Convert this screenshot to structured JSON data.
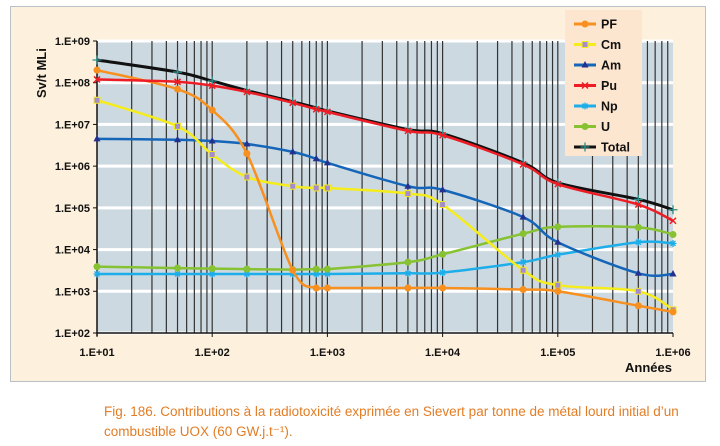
{
  "chart_data": {
    "type": "line",
    "xscale": "log",
    "yscale": "log",
    "xlim": [
      10,
      1000000
    ],
    "ylim": [
      100,
      1000000000
    ],
    "xlabel": "Années",
    "ylabel": "Sv/t MLi",
    "xticks": [
      "1.E+01",
      "1.E+02",
      "1.E+03",
      "1.E+04",
      "1.E+05",
      "1.E+06"
    ],
    "yticks": [
      "1.E+02",
      "1.E+03",
      "1.E+04",
      "1.E+05",
      "1.E+06",
      "1.E+07",
      "1.E+08",
      "1.E+09"
    ],
    "grid": true,
    "legend_position": "top-right",
    "x": [
      10,
      50,
      100,
      200,
      500,
      800,
      1000,
      5000,
      10000,
      50000,
      100000,
      500000,
      1000000
    ],
    "series": [
      {
        "name": "PF",
        "color": "#f7901e",
        "marker": "circle",
        "values": [
          200000000.0,
          70000000.0,
          22000000.0,
          2000000.0,
          3200.0,
          1200.0,
          1200.0,
          1200.0,
          1200.0,
          1100.0,
          1000.0,
          450.0,
          320.0
        ]
      },
      {
        "name": "Cm",
        "color": "#f5ec1c",
        "marker": "square",
        "values": [
          38000000.0,
          9000000.0,
          1900000.0,
          550000.0,
          330000.0,
          300000.0,
          300000.0,
          220000.0,
          120000.0,
          3200.0,
          1400.0,
          1000.0,
          360.0
        ]
      },
      {
        "name": "Am",
        "color": "#1565b8",
        "marker": "triangle",
        "values": [
          4500000.0,
          4300000.0,
          4000000.0,
          3400000.0,
          2200000.0,
          1500000.0,
          1200000.0,
          330000.0,
          270000.0,
          60000.0,
          15000.0,
          2700.0,
          2600.0
        ]
      },
      {
        "name": "Pu",
        "color": "#ee1c24",
        "marker": "x",
        "values": [
          120000000.0,
          105000000.0,
          85000000.0,
          60000000.0,
          33000000.0,
          23000000.0,
          20000000.0,
          7000000.0,
          5500000.0,
          1100000.0,
          370000.0,
          120000.0,
          49000.0
        ]
      },
      {
        "name": "Np",
        "color": "#1daeea",
        "marker": "star",
        "values": [
          2600.0,
          2600.0,
          2600.0,
          2600.0,
          2600.0,
          2600.0,
          2600.0,
          2700.0,
          2800.0,
          5000.0,
          7500.0,
          15000.0,
          14000.0
        ]
      },
      {
        "name": "U",
        "color": "#86c232",
        "marker": "circle",
        "values": [
          3900.0,
          3600.0,
          3500.0,
          3400.0,
          3300.0,
          3400.0,
          3400.0,
          5000.0,
          7700.0,
          24000.0,
          35000.0,
          34000.0,
          23000.0
        ]
      },
      {
        "name": "Total",
        "color": "#111111",
        "marker": "plus",
        "values": [
          350000000.0,
          180000000.0,
          110000000.0,
          65000000.0,
          35000000.0,
          25000000.0,
          21000000.0,
          7500000.0,
          6000000.0,
          1200000.0,
          400000.0,
          160000.0,
          90000.0
        ]
      }
    ],
    "colors": {
      "plot_bg": "#cdd9e1",
      "frame_bg": "#fdf0dc",
      "caption": "#e27d25"
    }
  },
  "caption": "Fig. 186. Contributions à la radiotoxicité exprimée en Sievert par tonne de métal lourd initial d’un combustible UOX (60 GW.j.t⁻¹)."
}
